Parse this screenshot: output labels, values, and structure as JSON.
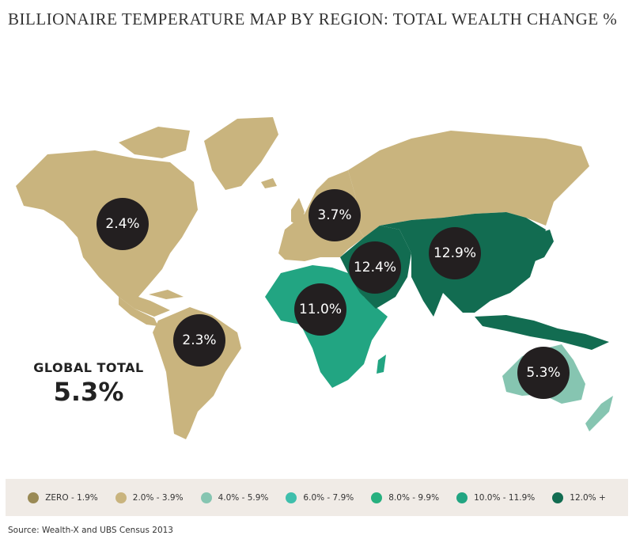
{
  "title": "BILLIONAIRE TEMPERATURE MAP BY REGION: TOTAL WEALTH CHANGE %",
  "global": {
    "label": "GLOBAL TOTAL",
    "value": "5.3%"
  },
  "colors": {
    "land_default": "#c9b47e",
    "tier_4_6": "#86c5b1",
    "tier_10_12": "#22a582",
    "tier_12_plus": "#126c51",
    "bubble": "#231f20",
    "legend_bg": "#f0ebe6"
  },
  "regions": [
    {
      "name": "North America",
      "value": "2.4%",
      "tier": "2.0% - 3.9%"
    },
    {
      "name": "Latin America",
      "value": "2.3%",
      "tier": "2.0% - 3.9%"
    },
    {
      "name": "Europe",
      "value": "3.7%",
      "tier": "2.0% - 3.9%"
    },
    {
      "name": "Africa",
      "value": "11.0%",
      "tier": "10.0% - 11.9%"
    },
    {
      "name": "Middle East",
      "value": "12.4%",
      "tier": "12.0% +"
    },
    {
      "name": "Asia",
      "value": "12.9%",
      "tier": "12.0% +"
    },
    {
      "name": "Pacific",
      "value": "5.3%",
      "tier": "4.0% - 5.9%"
    }
  ],
  "legend": [
    {
      "label": "ZERO - 1.9%",
      "color": "#9a8a55"
    },
    {
      "label": "2.0% - 3.9%",
      "color": "#c9b47e"
    },
    {
      "label": "4.0% - 5.9%",
      "color": "#86c5b1"
    },
    {
      "label": "6.0% - 7.9%",
      "color": "#3fbfac"
    },
    {
      "label": "8.0% - 9.9%",
      "color": "#27b07f"
    },
    {
      "label": "10.0% - 11.9%",
      "color": "#22a582"
    },
    {
      "label": "12.0% +",
      "color": "#126c51"
    }
  ],
  "source": "Source: Wealth-X and UBS Census 2013"
}
